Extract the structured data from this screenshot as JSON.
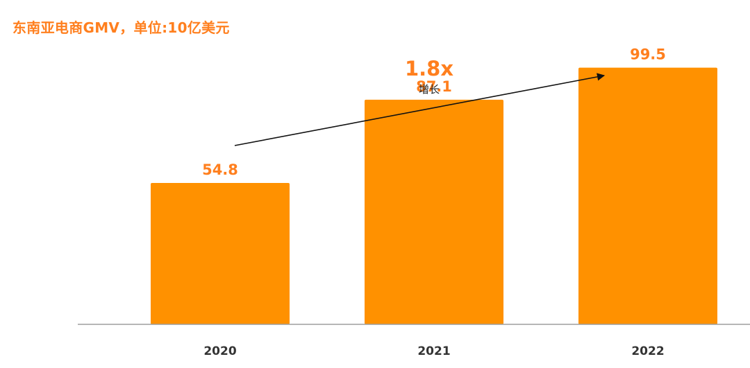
{
  "title": "东南亚电商GMV，单位:10亿美元",
  "colors": {
    "bar": "#FF9100",
    "accent": "#FF7F1E",
    "baseline": "#9E9E9E",
    "arrow": "#111111"
  },
  "growth": {
    "value": "1.8x",
    "label": "增长"
  },
  "chart_data": {
    "type": "bar",
    "title": "东南亚电商GMV，单位:10亿美元",
    "xlabel": "",
    "ylabel": "",
    "categories": [
      "2020",
      "2021",
      "2022"
    ],
    "values": [
      54.8,
      87.1,
      99.5
    ],
    "value_labels": [
      "54.8",
      "87.1",
      "99.5"
    ],
    "ylim": [
      0,
      115
    ],
    "grid": false,
    "annotations": [
      {
        "text": "1.8x",
        "note": "增长",
        "type": "growth-arrow"
      }
    ]
  }
}
